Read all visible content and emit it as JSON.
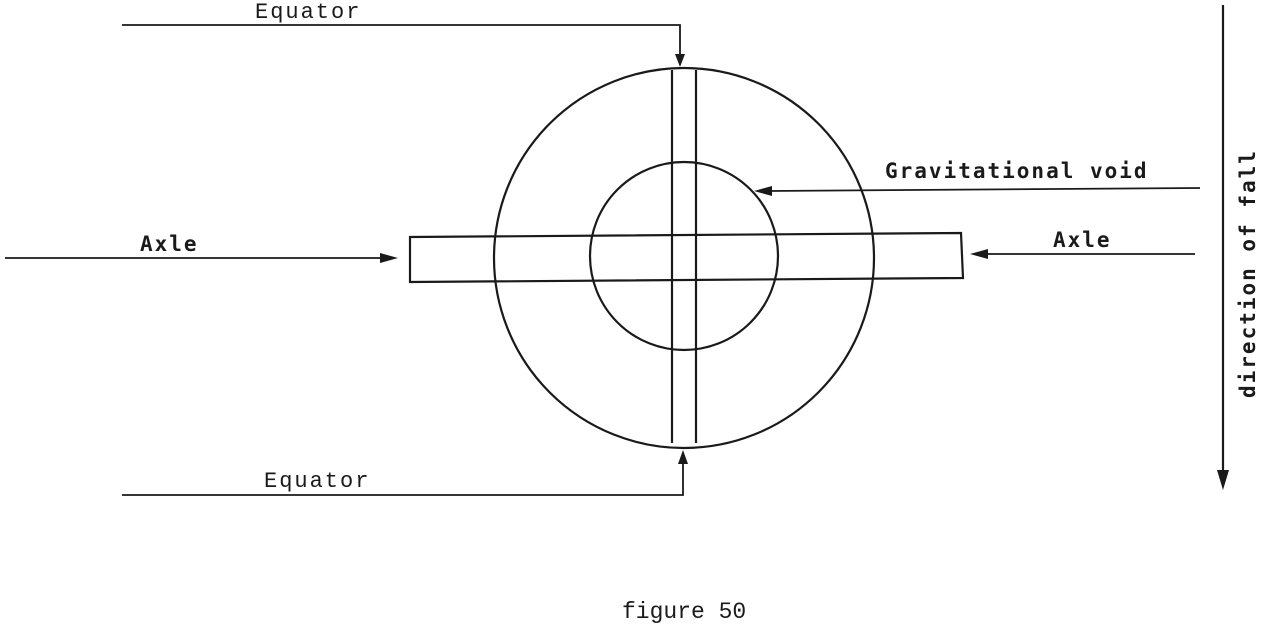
{
  "labels": {
    "equator_top": "Equator",
    "equator_bottom": "Equator",
    "axle_left": "Axle",
    "axle_right": "Axle",
    "gravitational_void": "Gravitational void",
    "direction_of_fall": "direction of fall"
  },
  "caption": "figure 50",
  "colors": {
    "ink": "#1a1a1a",
    "background": "#ffffff"
  }
}
